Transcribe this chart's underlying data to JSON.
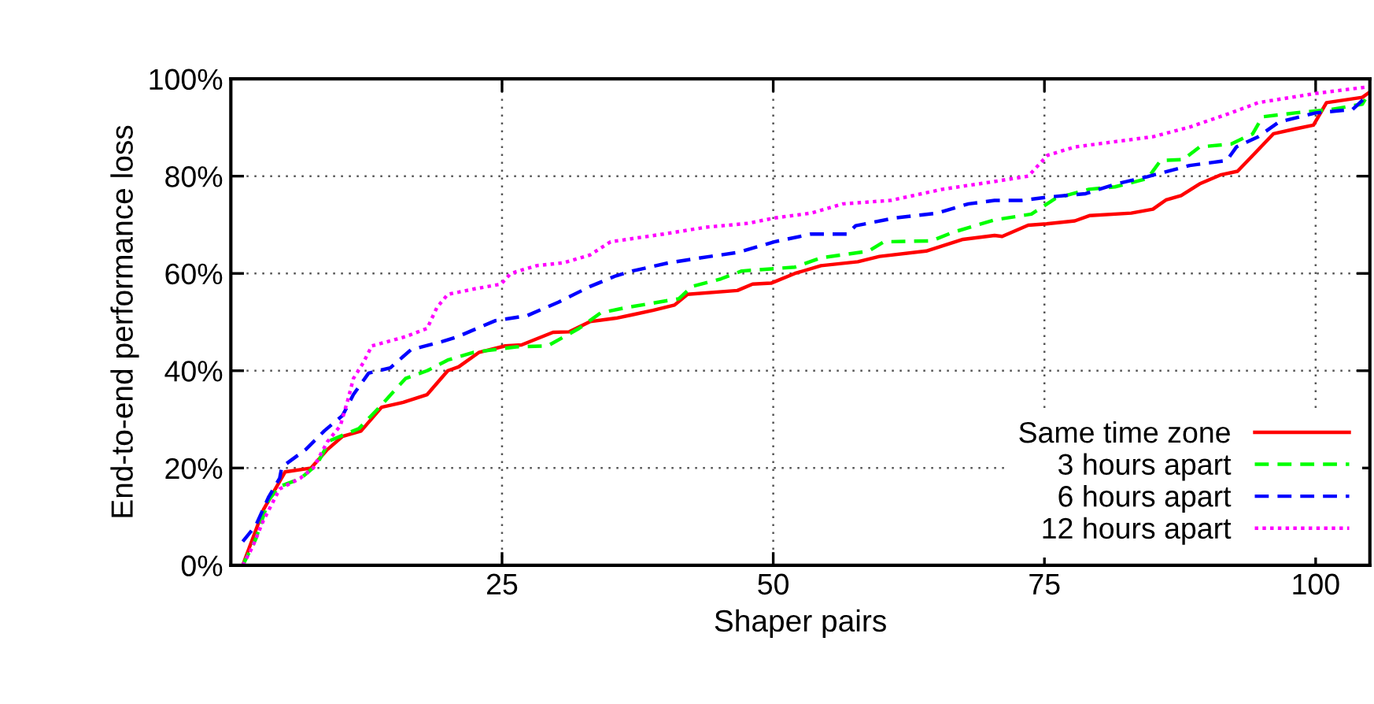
{
  "chart_data": {
    "type": "line",
    "xlabel": "Shaper pairs",
    "ylabel": "End-to-end performance loss",
    "xlim": [
      0,
      105
    ],
    "ylim": [
      0,
      100
    ],
    "xticks": [
      25,
      50,
      75,
      100
    ],
    "yticks": [
      {
        "value": 0,
        "label": "0%"
      },
      {
        "value": 20,
        "label": "20%"
      },
      {
        "value": 40,
        "label": "40%"
      },
      {
        "value": 60,
        "label": "60%"
      },
      {
        "value": 80,
        "label": "80%"
      },
      {
        "value": 100,
        "label": "100%"
      }
    ],
    "grid": true,
    "legend": "bottom right",
    "marker": "none",
    "series": [
      {
        "name": "Same time zone",
        "color": "#ff0000",
        "line_style": "solid",
        "x": [
          1.1,
          3.0,
          5.0,
          7.4,
          8.9,
          10.3,
          12.0,
          13.9,
          15.9,
          18.1,
          20.0,
          21.0,
          22.9,
          25.3,
          26.8,
          29.7,
          31.2,
          33.1,
          35.5,
          37.0,
          38.9,
          40.9,
          42.1,
          46.7,
          48.1,
          49.8,
          52.0,
          54.4,
          57.8,
          59.8,
          64.1,
          67.5,
          70.4,
          71.1,
          73.5,
          75.2,
          77.8,
          79.2,
          83.0,
          85.0,
          86.2,
          87.6,
          89.3,
          91.3,
          92.8,
          94.7,
          96.1,
          98.1,
          99.8,
          101.0,
          104.3,
          105.0
        ],
        "values": [
          0,
          11.4,
          19.2,
          20,
          23.8,
          26.5,
          27.6,
          32.5,
          33.5,
          35.1,
          40,
          40.8,
          43.8,
          45.1,
          45.3,
          47.9,
          48,
          50.1,
          50.8,
          51.5,
          52.4,
          53.5,
          55.7,
          56.5,
          57.8,
          58,
          60,
          61.6,
          62.4,
          63.5,
          64.6,
          67,
          67.8,
          67.6,
          69.9,
          70.2,
          70.8,
          71.9,
          72.4,
          73.2,
          75.1,
          76,
          78.4,
          80.3,
          81,
          85.4,
          88.7,
          89.7,
          90.5,
          95.1,
          96.2,
          97.3
        ]
      },
      {
        "name": "3 hours apart",
        "color": "#00ff00",
        "line_style": "dashed",
        "x": [
          1.1,
          2.3,
          3.5,
          4.5,
          6.4,
          7.9,
          9.1,
          11.8,
          13.7,
          16.1,
          18.1,
          20.0,
          22.4,
          26.3,
          29.2,
          32.1,
          34.1,
          36.5,
          41.3,
          42.5,
          45.2,
          47.1,
          52.0,
          54.4,
          58.8,
          60.2,
          64.6,
          66.5,
          70.4,
          73.8,
          76.0,
          79.1,
          81.5,
          84.5,
          85.7,
          87.8,
          89.3,
          92.2,
          94.2,
          95.1,
          98.1,
          101.4,
          104.3,
          105.0
        ],
        "values": [
          0,
          5.4,
          13.5,
          16.2,
          17.8,
          20.6,
          25.6,
          28.1,
          32.5,
          38.4,
          40,
          42.2,
          43.8,
          44.9,
          45.1,
          48.7,
          51.9,
          53,
          54.8,
          57.3,
          58.9,
          60.5,
          61.3,
          63.2,
          64.6,
          66.5,
          66.7,
          68.4,
          71,
          72.2,
          75.4,
          77.3,
          77.8,
          79.5,
          83.2,
          83.4,
          86,
          86.6,
          88.7,
          92.2,
          93,
          93.7,
          94.8,
          97.3
        ]
      },
      {
        "name": "6 hours apart",
        "color": "#0000ff",
        "line_style": "dashed",
        "x": [
          1.1,
          2.3,
          3.5,
          4.5,
          4.7,
          6.9,
          8.6,
          10.3,
          11.3,
          12.7,
          14.7,
          16.6,
          19.5,
          20.8,
          24.4,
          27.3,
          30.2,
          33.1,
          35.5,
          37.0,
          40.4,
          44.2,
          46.7,
          50.1,
          53.5,
          56.8,
          57.6,
          61.2,
          65.1,
          68.0,
          70.4,
          72.9,
          75.4,
          78.8,
          81.6,
          84.5,
          88.4,
          91.8,
          92.7,
          94.7,
          96.6,
          100.0,
          103.4,
          105.0
        ],
        "values": [
          4.9,
          8.2,
          14.1,
          17.9,
          20.2,
          23.8,
          27.6,
          30.8,
          35.1,
          39.5,
          40.6,
          44.3,
          46,
          46.9,
          50.3,
          51.3,
          54.1,
          57.3,
          59.5,
          60.5,
          62.2,
          63.5,
          64.3,
          66.5,
          68.1,
          68.1,
          69.8,
          71.4,
          72.4,
          74.3,
          75,
          75,
          75.7,
          76.4,
          78.4,
          79.9,
          82.2,
          83.2,
          86,
          88.1,
          91.1,
          93,
          93.7,
          97
        ]
      },
      {
        "name": "12 hours apart",
        "color": "#ff00ff",
        "line_style": "dotted",
        "x": [
          1.1,
          2.0,
          3.0,
          4.5,
          6.4,
          7.6,
          8.9,
          10.1,
          10.8,
          11.3,
          12.2,
          13.0,
          16.1,
          18.1,
          19.0,
          20.0,
          22.4,
          24.9,
          25.8,
          28.2,
          30.7,
          33.1,
          35.0,
          39.9,
          43.8,
          47.7,
          50.1,
          53.5,
          56.4,
          60.8,
          65.6,
          70.4,
          73.5,
          75.3,
          77.8,
          85.0,
          88.4,
          92.2,
          94.7,
          100.0,
          105.0
        ],
        "values": [
          0,
          3.8,
          9.2,
          15.7,
          17.9,
          20,
          25.4,
          28.7,
          34.1,
          38.4,
          41.6,
          45.1,
          47,
          48.7,
          53,
          55.7,
          56.8,
          57.8,
          60,
          61.6,
          62.2,
          63.8,
          66.5,
          68.1,
          69.5,
          70.3,
          71.4,
          72.4,
          74.3,
          75,
          77.3,
          78.9,
          80,
          84.3,
          86,
          88.1,
          90.1,
          93,
          95.1,
          97,
          98.4
        ]
      }
    ]
  }
}
